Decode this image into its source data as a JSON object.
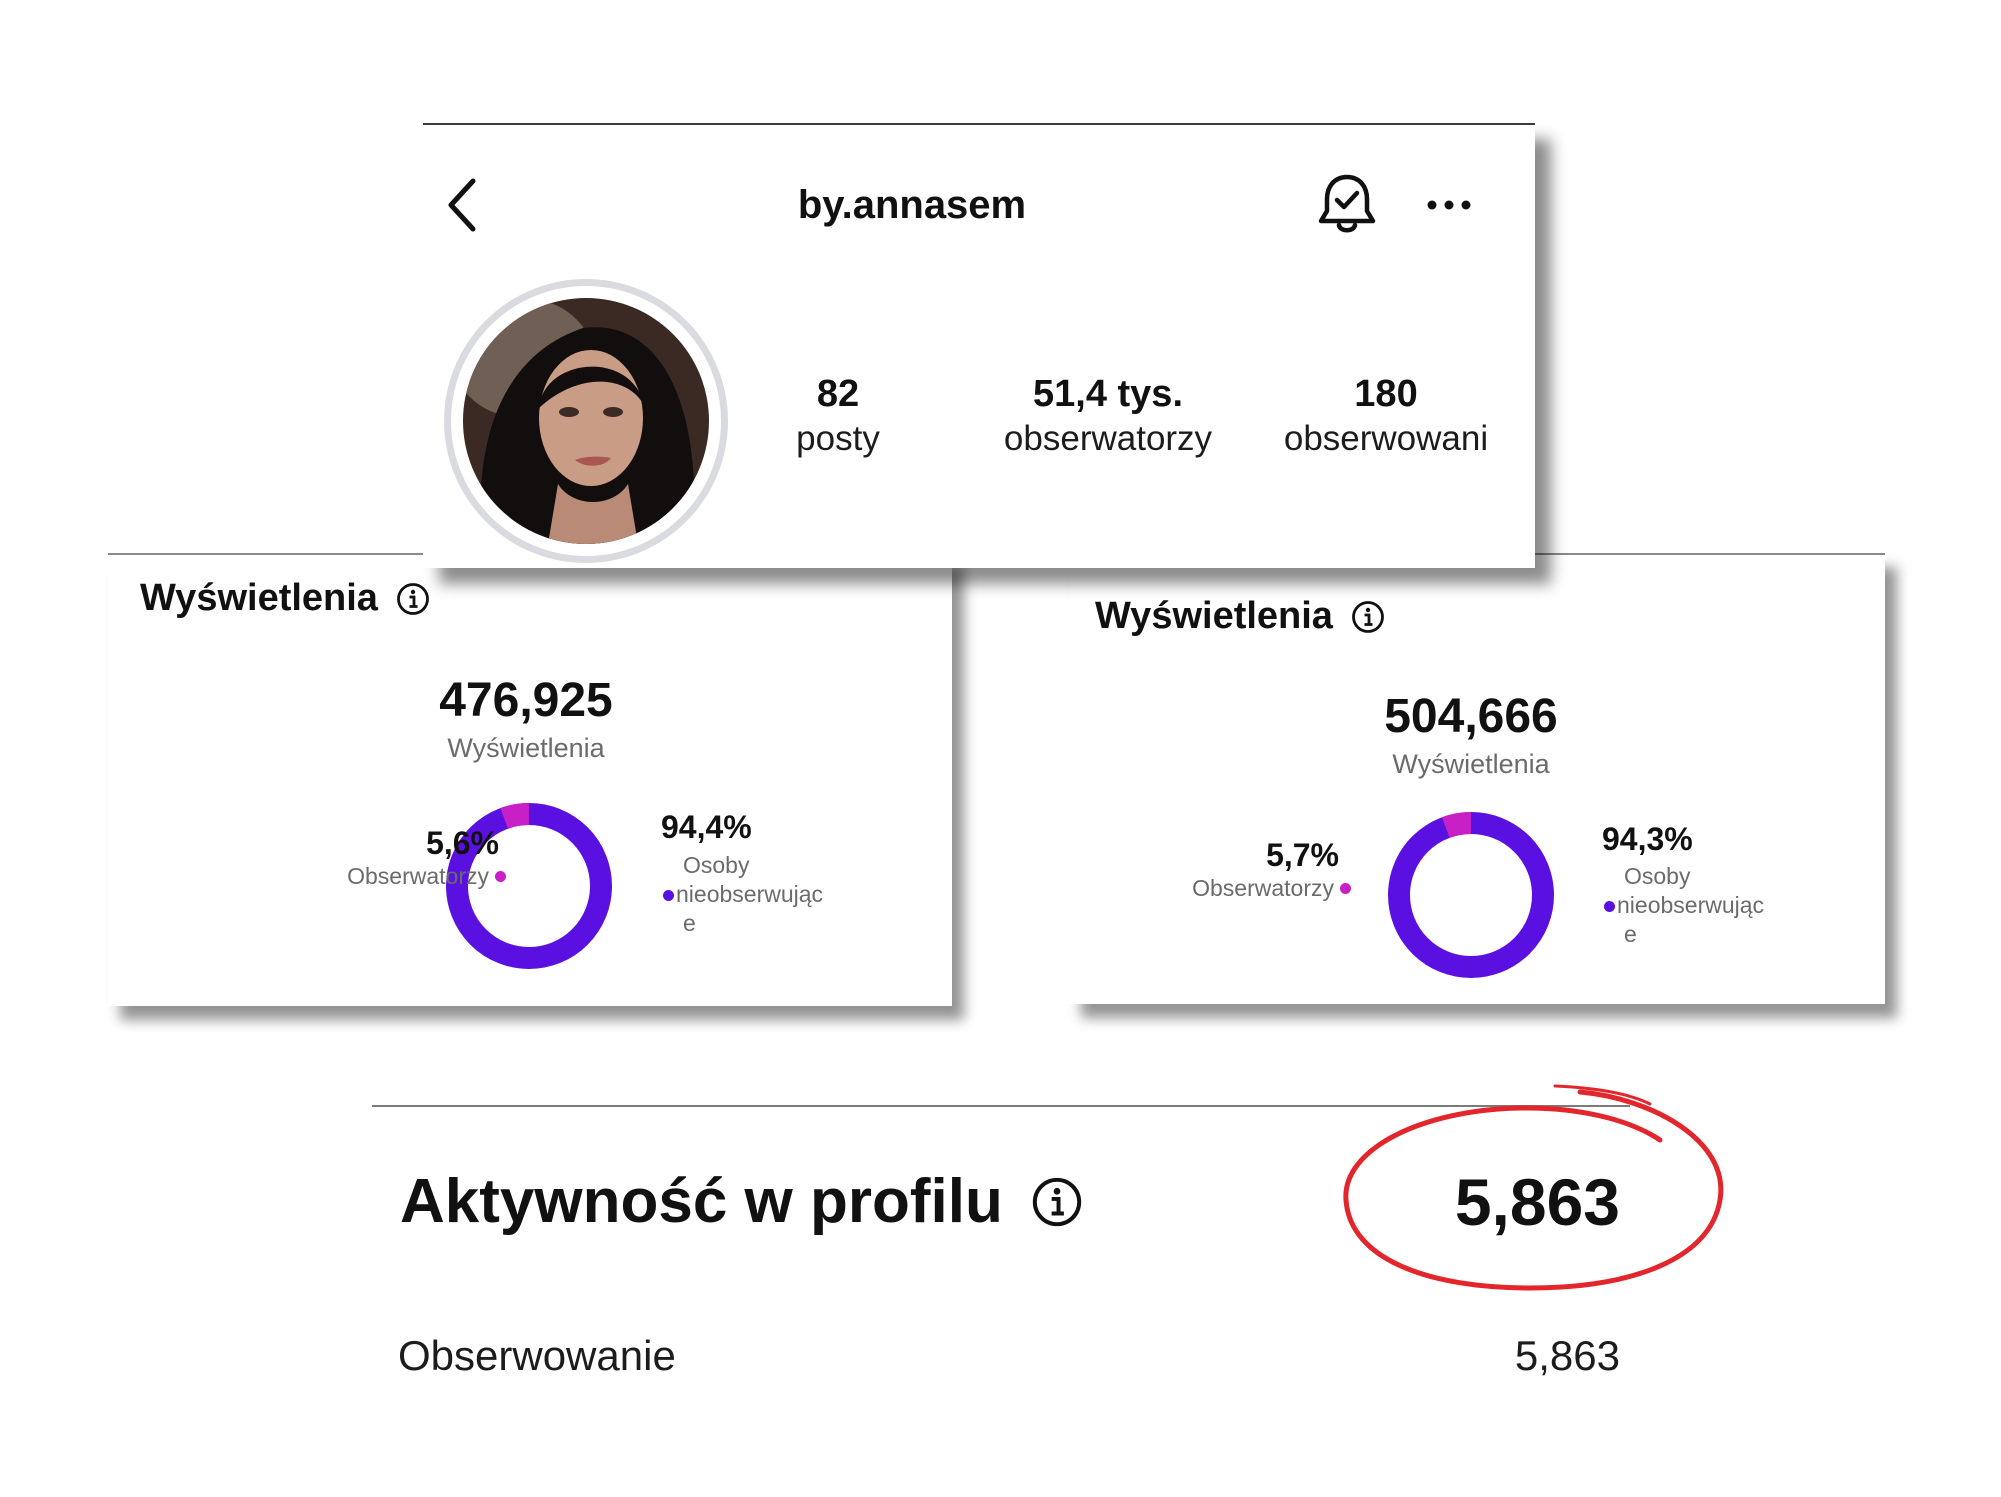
{
  "profile": {
    "username": "by.annasem",
    "stats": [
      {
        "value": "82",
        "label": "posty"
      },
      {
        "value": "51,4 tys.",
        "label": "obserwatorzy"
      },
      {
        "value": "180",
        "label": "obserwowani"
      }
    ]
  },
  "views_left": {
    "title": "Wyświetlenia",
    "total": "476,925",
    "total_label": "Wyświetlenia",
    "followers_pct": "5,6%",
    "followers_label": "Obserwatorzy",
    "nonfollowers_pct": "94,4%",
    "nonfollowers_label_lines": [
      "Osoby",
      "nieobserwując",
      "e"
    ],
    "followers_share": 5.6,
    "nonfollowers_share": 94.4
  },
  "views_right": {
    "title": "Wyświetlenia",
    "total": "504,666",
    "total_label": "Wyświetlenia",
    "followers_pct": "5,7%",
    "followers_label": "Obserwatorzy",
    "nonfollowers_pct": "94,3%",
    "nonfollowers_label_lines": [
      "Osoby",
      "nieobserwując",
      "e"
    ],
    "followers_share": 5.7,
    "nonfollowers_share": 94.3
  },
  "activity": {
    "title": "Aktywność w profilu",
    "total": "5,863",
    "rows": [
      {
        "label": "Obserwowanie",
        "value": "5,863"
      }
    ]
  },
  "colors": {
    "followers": "#c81fc6",
    "nonfollowers": "#5a10e0",
    "annotation_circle": "#e2262b",
    "avatar_ring": "#dadbe0"
  },
  "icons": {
    "back": "chevron-left-icon",
    "bell": "bell-check-icon",
    "more": "more-horizontal-icon",
    "info": "info-icon"
  }
}
